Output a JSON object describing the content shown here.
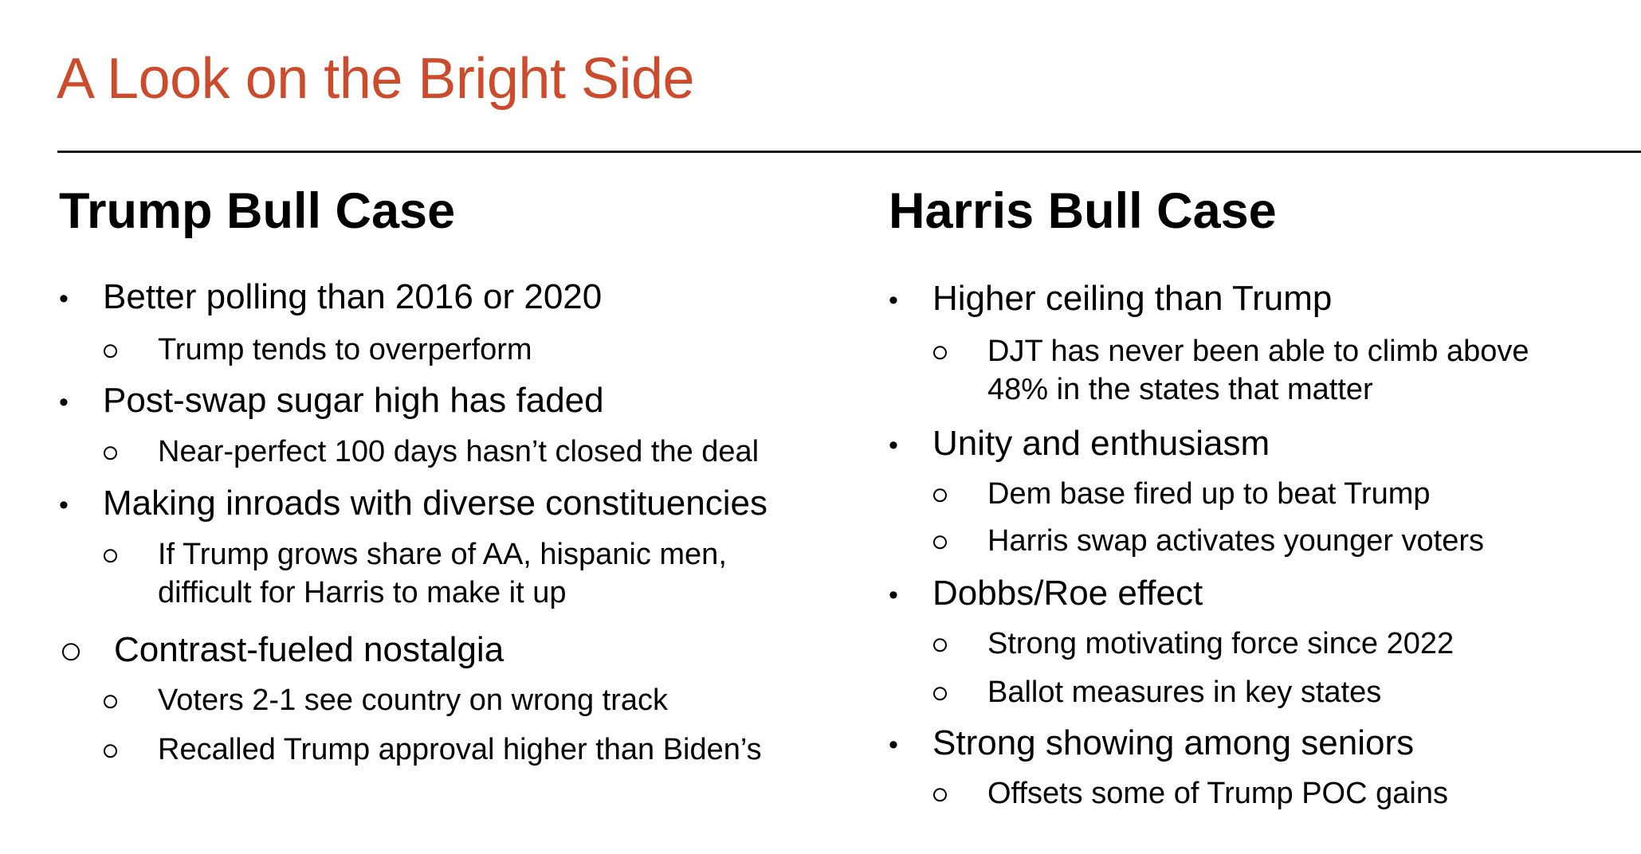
{
  "slide": {
    "title": "A Look on the Bright Side",
    "title_color": "#CC4B2C",
    "left": {
      "heading": "Trump Bull Case",
      "items": [
        {
          "marker": "•",
          "text": "Better polling than 2016 or 2020"
        },
        {
          "marker": "o",
          "text": "Trump tends to overperform"
        },
        {
          "marker": "•",
          "text": "Post-swap sugar high has faded"
        },
        {
          "marker": "o",
          "text": "Near-perfect 100 days hasn’t closed the deal"
        },
        {
          "marker": "•",
          "text": "Making inroads with diverse constituencies"
        },
        {
          "marker": "o",
          "text": "If Trump grows share of AA, hispanic men,",
          "text2": "difficult for Harris to make it up"
        },
        {
          "marker": "o",
          "text": "Contrast-fueled nostalgia"
        },
        {
          "marker": "o",
          "text": "Voters 2-1 see country on wrong track"
        },
        {
          "marker": "o",
          "text": "Recalled Trump approval higher than Biden’s"
        }
      ]
    },
    "right": {
      "heading": "Harris Bull Case",
      "items": [
        {
          "marker": "•",
          "text": "Higher ceiling than Trump"
        },
        {
          "marker": "o",
          "text": "DJT has never been able to climb above",
          "text2": "48% in the states that matter"
        },
        {
          "marker": "•",
          "text": "Unity and enthusiasm"
        },
        {
          "marker": "o",
          "text": "Dem base fired up to beat Trump"
        },
        {
          "marker": "o",
          "text": "Harris swap activates younger voters"
        },
        {
          "marker": "•",
          "text": "Dobbs/Roe effect"
        },
        {
          "marker": "o",
          "text": "Strong motivating force since 2022"
        },
        {
          "marker": "o",
          "text": "Ballot measures in key states"
        },
        {
          "marker": "•",
          "text": "Strong showing among seniors"
        },
        {
          "marker": "o",
          "text": "Offsets some of Trump POC gains"
        }
      ]
    }
  }
}
